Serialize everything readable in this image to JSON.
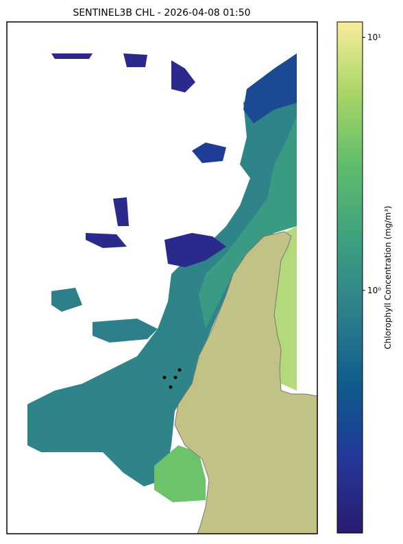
{
  "title": "SENTINEL3B CHL - 2026-04-08 01:50",
  "colorbar": {
    "label": "Chlorophyll Concentration (mg/m³)",
    "log": true,
    "lim": [
      0.11,
      11.5
    ],
    "ticks": [
      {
        "value": 10,
        "label": "10¹"
      },
      {
        "value": 1,
        "label": "10⁰"
      }
    ],
    "colors": [
      "#2a1b6e",
      "#24379a",
      "#0f5a8e",
      "#2c7f8b",
      "#3e9f80",
      "#5dbc6c",
      "#a6d566",
      "#f9ec9b"
    ]
  }
}
